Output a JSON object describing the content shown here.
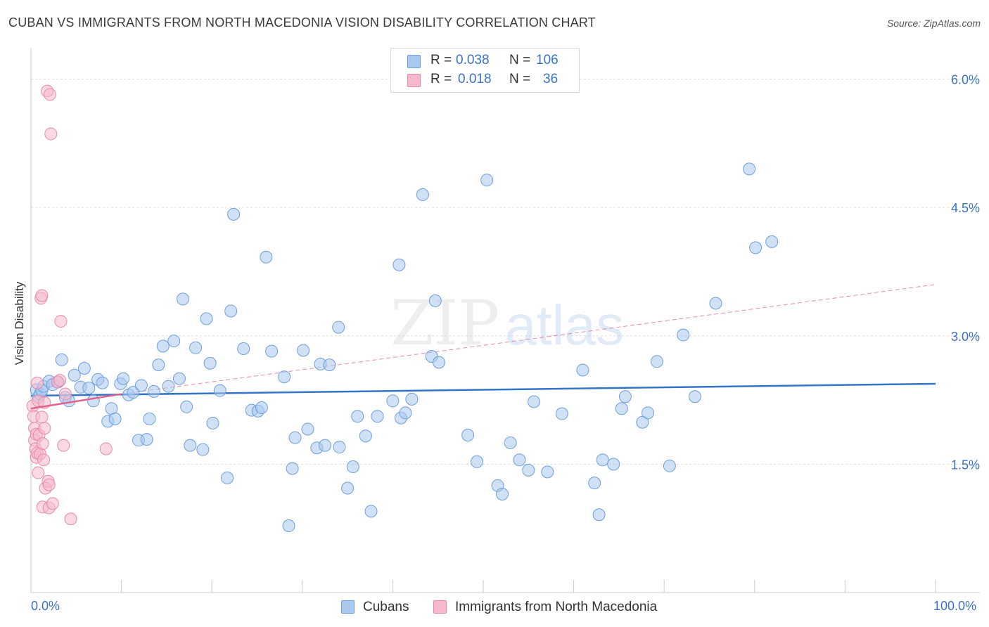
{
  "title": "CUBAN VS IMMIGRANTS FROM NORTH MACEDONIA VISION DISABILITY CORRELATION CHART",
  "source": "Source: ZipAtlas.com",
  "watermark": {
    "zip": "ZIP",
    "atlas": "atlas"
  },
  "legend_top": {
    "rows": [
      {
        "r_label": "R =",
        "r_value": "0.038",
        "n_label": "N =",
        "n_value": "106",
        "color": "#a9c8ef",
        "border": "#6d9fdc"
      },
      {
        "r_label": "R =",
        "r_value": "0.018",
        "n_label": "N =",
        "n_value": "36",
        "color": "#f6b9cc",
        "border": "#e889a8"
      }
    ]
  },
  "legend_bottom": [
    {
      "label": "Cubans",
      "color": "#a9c8ef",
      "border": "#6d9fdc"
    },
    {
      "label": "Immigrants from North Macedonia",
      "color": "#f6b9cc",
      "border": "#e889a8"
    }
  ],
  "chart_data": {
    "type": "scatter",
    "title": "CUBAN VS IMMIGRANTS FROM NORTH MACEDONIA VISION DISABILITY CORRELATION CHART",
    "ylabel": "Vision Disability",
    "xlabel": "",
    "xlim": [
      0,
      100
    ],
    "ylim": [
      0.0,
      6.3
    ],
    "x_tick_labels": {
      "min": "0.0%",
      "max": "100.0%"
    },
    "y_ticks": [
      {
        "value": 1.5,
        "label": "1.5%"
      },
      {
        "value": 3.0,
        "label": "3.0%"
      },
      {
        "value": 4.5,
        "label": "4.5%"
      },
      {
        "value": 6.0,
        "label": "6.0%"
      }
    ],
    "grid": "horizontal dashed",
    "legend_position": "top-center",
    "series": [
      {
        "name": "Cubans",
        "color": "#a9c8ef",
        "edge": "#6d9fdc",
        "trend": {
          "x": [
            0,
            100
          ],
          "y": [
            2.3,
            2.44
          ],
          "color": "#3474c8",
          "style": "solid"
        },
        "points": [
          [
            0.6,
            2.37
          ],
          [
            0.8,
            2.28
          ],
          [
            1.0,
            2.32
          ],
          [
            1.2,
            2.36
          ],
          [
            1.4,
            2.41
          ],
          [
            2.0,
            2.47
          ],
          [
            2.4,
            2.43
          ],
          [
            3.0,
            2.46
          ],
          [
            3.4,
            2.72
          ],
          [
            3.8,
            2.28
          ],
          [
            4.2,
            2.24
          ],
          [
            4.8,
            2.54
          ],
          [
            5.5,
            2.4
          ],
          [
            5.9,
            2.62
          ],
          [
            6.4,
            2.39
          ],
          [
            6.9,
            2.24
          ],
          [
            7.4,
            2.49
          ],
          [
            7.9,
            2.45
          ],
          [
            8.5,
            2.0
          ],
          [
            8.9,
            2.15
          ],
          [
            9.3,
            2.03
          ],
          [
            9.9,
            2.44
          ],
          [
            10.2,
            2.5
          ],
          [
            10.8,
            2.31
          ],
          [
            11.3,
            2.34
          ],
          [
            11.9,
            1.78
          ],
          [
            12.2,
            2.42
          ],
          [
            12.8,
            1.79
          ],
          [
            13.1,
            2.03
          ],
          [
            13.6,
            2.35
          ],
          [
            14.1,
            2.66
          ],
          [
            14.6,
            2.88
          ],
          [
            15.2,
            2.41
          ],
          [
            15.8,
            2.94
          ],
          [
            16.4,
            2.5
          ],
          [
            16.8,
            3.43
          ],
          [
            17.2,
            2.17
          ],
          [
            17.6,
            1.72
          ],
          [
            18.2,
            2.86
          ],
          [
            19.0,
            1.67
          ],
          [
            19.4,
            3.2
          ],
          [
            19.8,
            2.68
          ],
          [
            20.1,
            1.98
          ],
          [
            20.9,
            2.36
          ],
          [
            21.7,
            1.34
          ],
          [
            22.1,
            3.29
          ],
          [
            22.4,
            4.42
          ],
          [
            23.5,
            2.85
          ],
          [
            24.4,
            2.13
          ],
          [
            25.1,
            2.12
          ],
          [
            25.5,
            2.16
          ],
          [
            26.0,
            3.92
          ],
          [
            26.6,
            2.82
          ],
          [
            28.0,
            2.52
          ],
          [
            28.5,
            0.78
          ],
          [
            28.9,
            1.45
          ],
          [
            29.2,
            1.81
          ],
          [
            30.1,
            2.83
          ],
          [
            30.6,
            1.91
          ],
          [
            31.6,
            1.69
          ],
          [
            32.0,
            2.67
          ],
          [
            32.5,
            1.72
          ],
          [
            33.0,
            2.66
          ],
          [
            34.0,
            3.1
          ],
          [
            34.1,
            1.7
          ],
          [
            35.0,
            1.22
          ],
          [
            35.6,
            1.47
          ],
          [
            36.1,
            2.06
          ],
          [
            37.0,
            1.83
          ],
          [
            37.6,
            0.95
          ],
          [
            38.3,
            2.06
          ],
          [
            40.0,
            2.24
          ],
          [
            40.7,
            3.83
          ],
          [
            40.9,
            2.04
          ],
          [
            41.4,
            2.1
          ],
          [
            42.1,
            2.26
          ],
          [
            43.3,
            4.65
          ],
          [
            44.3,
            2.76
          ],
          [
            44.7,
            3.41
          ],
          [
            45.1,
            2.69
          ],
          [
            48.3,
            1.84
          ],
          [
            49.3,
            1.53
          ],
          [
            50.4,
            4.82
          ],
          [
            51.6,
            1.25
          ],
          [
            52.1,
            1.15
          ],
          [
            53.0,
            1.75
          ],
          [
            54.0,
            1.55
          ],
          [
            55.0,
            1.43
          ],
          [
            55.6,
            2.23
          ],
          [
            57.1,
            1.41
          ],
          [
            58.7,
            2.09
          ],
          [
            61.0,
            2.6
          ],
          [
            62.3,
            1.28
          ],
          [
            62.8,
            0.91
          ],
          [
            63.2,
            1.55
          ],
          [
            64.4,
            1.5
          ],
          [
            65.3,
            2.15
          ],
          [
            65.7,
            2.29
          ],
          [
            67.6,
            1.99
          ],
          [
            68.2,
            2.1
          ],
          [
            69.2,
            2.7
          ],
          [
            70.6,
            1.48
          ],
          [
            72.1,
            3.01
          ],
          [
            73.4,
            2.29
          ],
          [
            75.7,
            3.38
          ],
          [
            79.4,
            4.95
          ],
          [
            80.1,
            4.03
          ],
          [
            81.9,
            4.1
          ]
        ]
      },
      {
        "name": "Immigrants from North Macedonia",
        "color": "#f6b9cc",
        "edge": "#e889a8",
        "trend": {
          "x": [
            0,
            10
          ],
          "y": [
            2.15,
            2.32
          ],
          "x_dashed_end": 100,
          "y_dashed_end": 3.6,
          "color": "#e0628f",
          "style": "solid+dashed"
        },
        "points": [
          [
            0.2,
            2.18
          ],
          [
            0.3,
            2.06
          ],
          [
            0.4,
            1.92
          ],
          [
            0.4,
            1.78
          ],
          [
            0.5,
            1.68
          ],
          [
            0.6,
            1.85
          ],
          [
            0.6,
            1.58
          ],
          [
            0.7,
            2.45
          ],
          [
            0.7,
            1.63
          ],
          [
            0.8,
            1.4
          ],
          [
            0.8,
            2.24
          ],
          [
            0.9,
            1.84
          ],
          [
            1.0,
            1.62
          ],
          [
            1.1,
            3.44
          ],
          [
            1.2,
            2.05
          ],
          [
            1.2,
            3.47
          ],
          [
            1.3,
            1.74
          ],
          [
            1.3,
            1.0
          ],
          [
            1.4,
            1.55
          ],
          [
            1.5,
            2.22
          ],
          [
            1.5,
            1.92
          ],
          [
            1.6,
            1.22
          ],
          [
            1.8,
            5.86
          ],
          [
            1.9,
            1.3
          ],
          [
            2.0,
            0.99
          ],
          [
            2.0,
            1.26
          ],
          [
            2.1,
            5.82
          ],
          [
            2.2,
            5.36
          ],
          [
            2.4,
            1.04
          ],
          [
            2.9,
            2.46
          ],
          [
            3.2,
            2.48
          ],
          [
            3.3,
            3.17
          ],
          [
            3.6,
            1.72
          ],
          [
            3.8,
            2.32
          ],
          [
            4.4,
            0.86
          ],
          [
            8.3,
            1.68
          ]
        ]
      }
    ]
  }
}
